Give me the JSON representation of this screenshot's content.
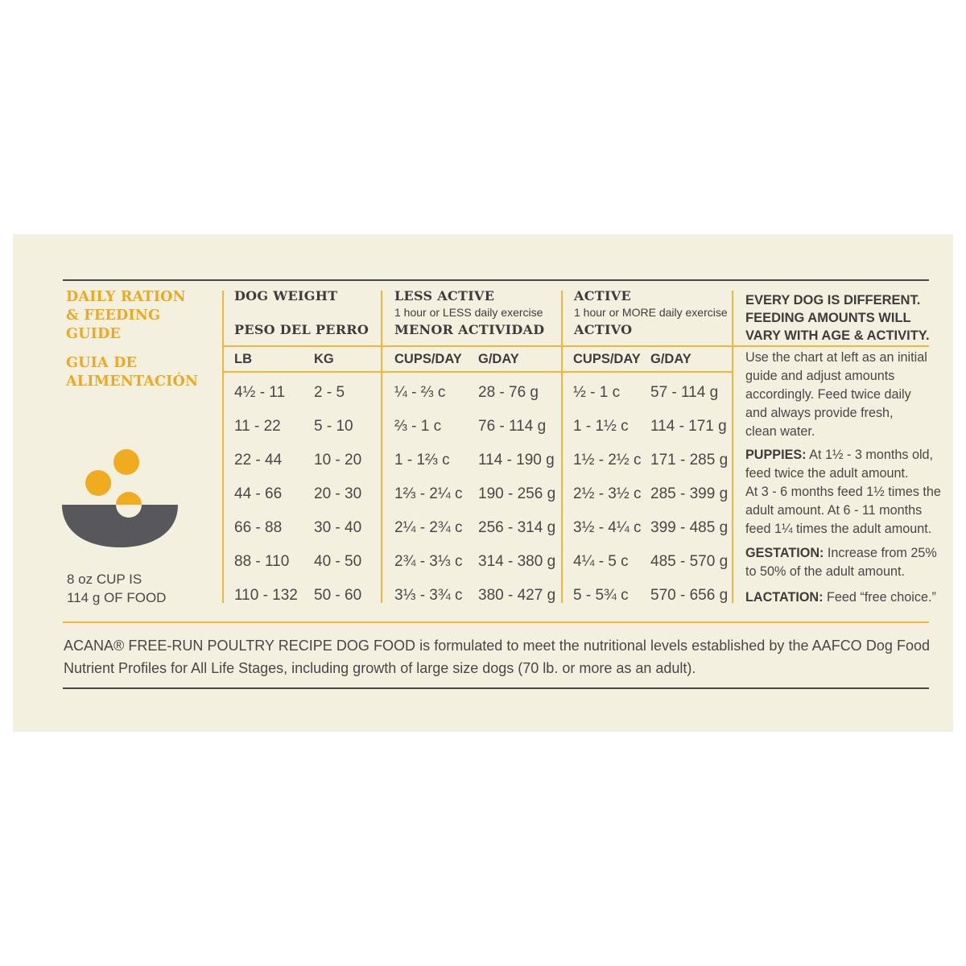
{
  "guide": {
    "title_en": [
      "DAILY RATION",
      "& FEEDING",
      "GUIDE"
    ],
    "title_es": [
      "GUIA DE",
      "ALIMENTACIÓN"
    ],
    "cup_note": [
      "8 oz CUP IS",
      "114 g OF FOOD"
    ]
  },
  "headers": {
    "weight_en": "DOG WEIGHT",
    "weight_es": "PESO DEL PERRO",
    "less_en": "LESS ACTIVE",
    "less_sub": "1 hour or LESS daily exercise",
    "less_es": "MENOR ACTIVIDAD",
    "active_en": "ACTIVE",
    "active_sub": "1 hour or MORE daily exercise",
    "active_es": "ACTIVO"
  },
  "columns": [
    "LB",
    "KG",
    "CUPS/DAY",
    "G/DAY",
    "CUPS/DAY",
    "G/DAY"
  ],
  "rows": [
    [
      "4½ - 11",
      "2 - 5",
      "¼ - ⅔ c",
      "28 - 76 g",
      "½ - 1 c",
      "57 - 114 g"
    ],
    [
      "11 - 22",
      "5 - 10",
      "⅔ - 1 c",
      "76 - 114 g",
      "1 - 1½ c",
      "114 - 171 g"
    ],
    [
      "22 - 44",
      "10 - 20",
      "1 - 1⅔ c",
      "114 - 190 g",
      "1½ - 2½ c",
      "171 - 285 g"
    ],
    [
      "44 - 66",
      "20 - 30",
      "1⅔ - 2¼ c",
      "190 - 256 g",
      "2½ - 3½ c",
      "285 - 399 g"
    ],
    [
      "66 - 88",
      "30 - 40",
      "2¼ - 2¾ c",
      "256 - 314 g",
      "3½ - 4¼ c",
      "399 - 485 g"
    ],
    [
      "88 - 110",
      "40 - 50",
      "2¾ - 3⅓ c",
      "314 - 380 g",
      "4¼ - 5 c",
      "485 - 570 g"
    ],
    [
      "110 - 132",
      "50 - 60",
      "3⅓ - 3¾ c",
      "380 - 427 g",
      "5 - 5¾ c",
      "570 - 656 g"
    ]
  ],
  "sidebar": {
    "heading": [
      "EVERY DOG IS DIFFERENT.",
      "FEEDING AMOUNTS WILL",
      "VARY WITH AGE & ACTIVITY."
    ],
    "intro": [
      "Use the chart at left as an initial",
      "guide and adjust amounts",
      "accordingly. Feed twice daily",
      "and always provide fresh,",
      "clean water."
    ],
    "puppies_label": "PUPPIES:",
    "puppies_text": [
      " At 1½ - 3 months old,",
      "feed twice the adult amount.",
      "At 3 - 6 months feed 1½ times the",
      "adult amount. At 6 - 11 months",
      "feed 1¼ times the adult amount."
    ],
    "gestation_label": "GESTATION:",
    "gestation_text": [
      " Increase from 25%",
      "to 50% of the adult amount."
    ],
    "lactation_label": "LACTATION:",
    "lactation_text": " Feed “free choice.”"
  },
  "footer": {
    "line1": "ACANA® FREE-RUN POULTRY RECIPE DOG FOOD is formulated to meet the nutritional levels established by the AAFCO Dog Food",
    "line2": "Nutrient Profiles for All Life Stages, including growth of large size dogs (70 lb. or more as an adult)."
  },
  "icon": {
    "name": "food-bowl-icon",
    "bowl_color": "#58575b",
    "kibble_color": "#f1ab1e"
  },
  "colors": {
    "panel": "#f3f0df",
    "gold": "#f3b53a",
    "text": "#4a4646"
  }
}
